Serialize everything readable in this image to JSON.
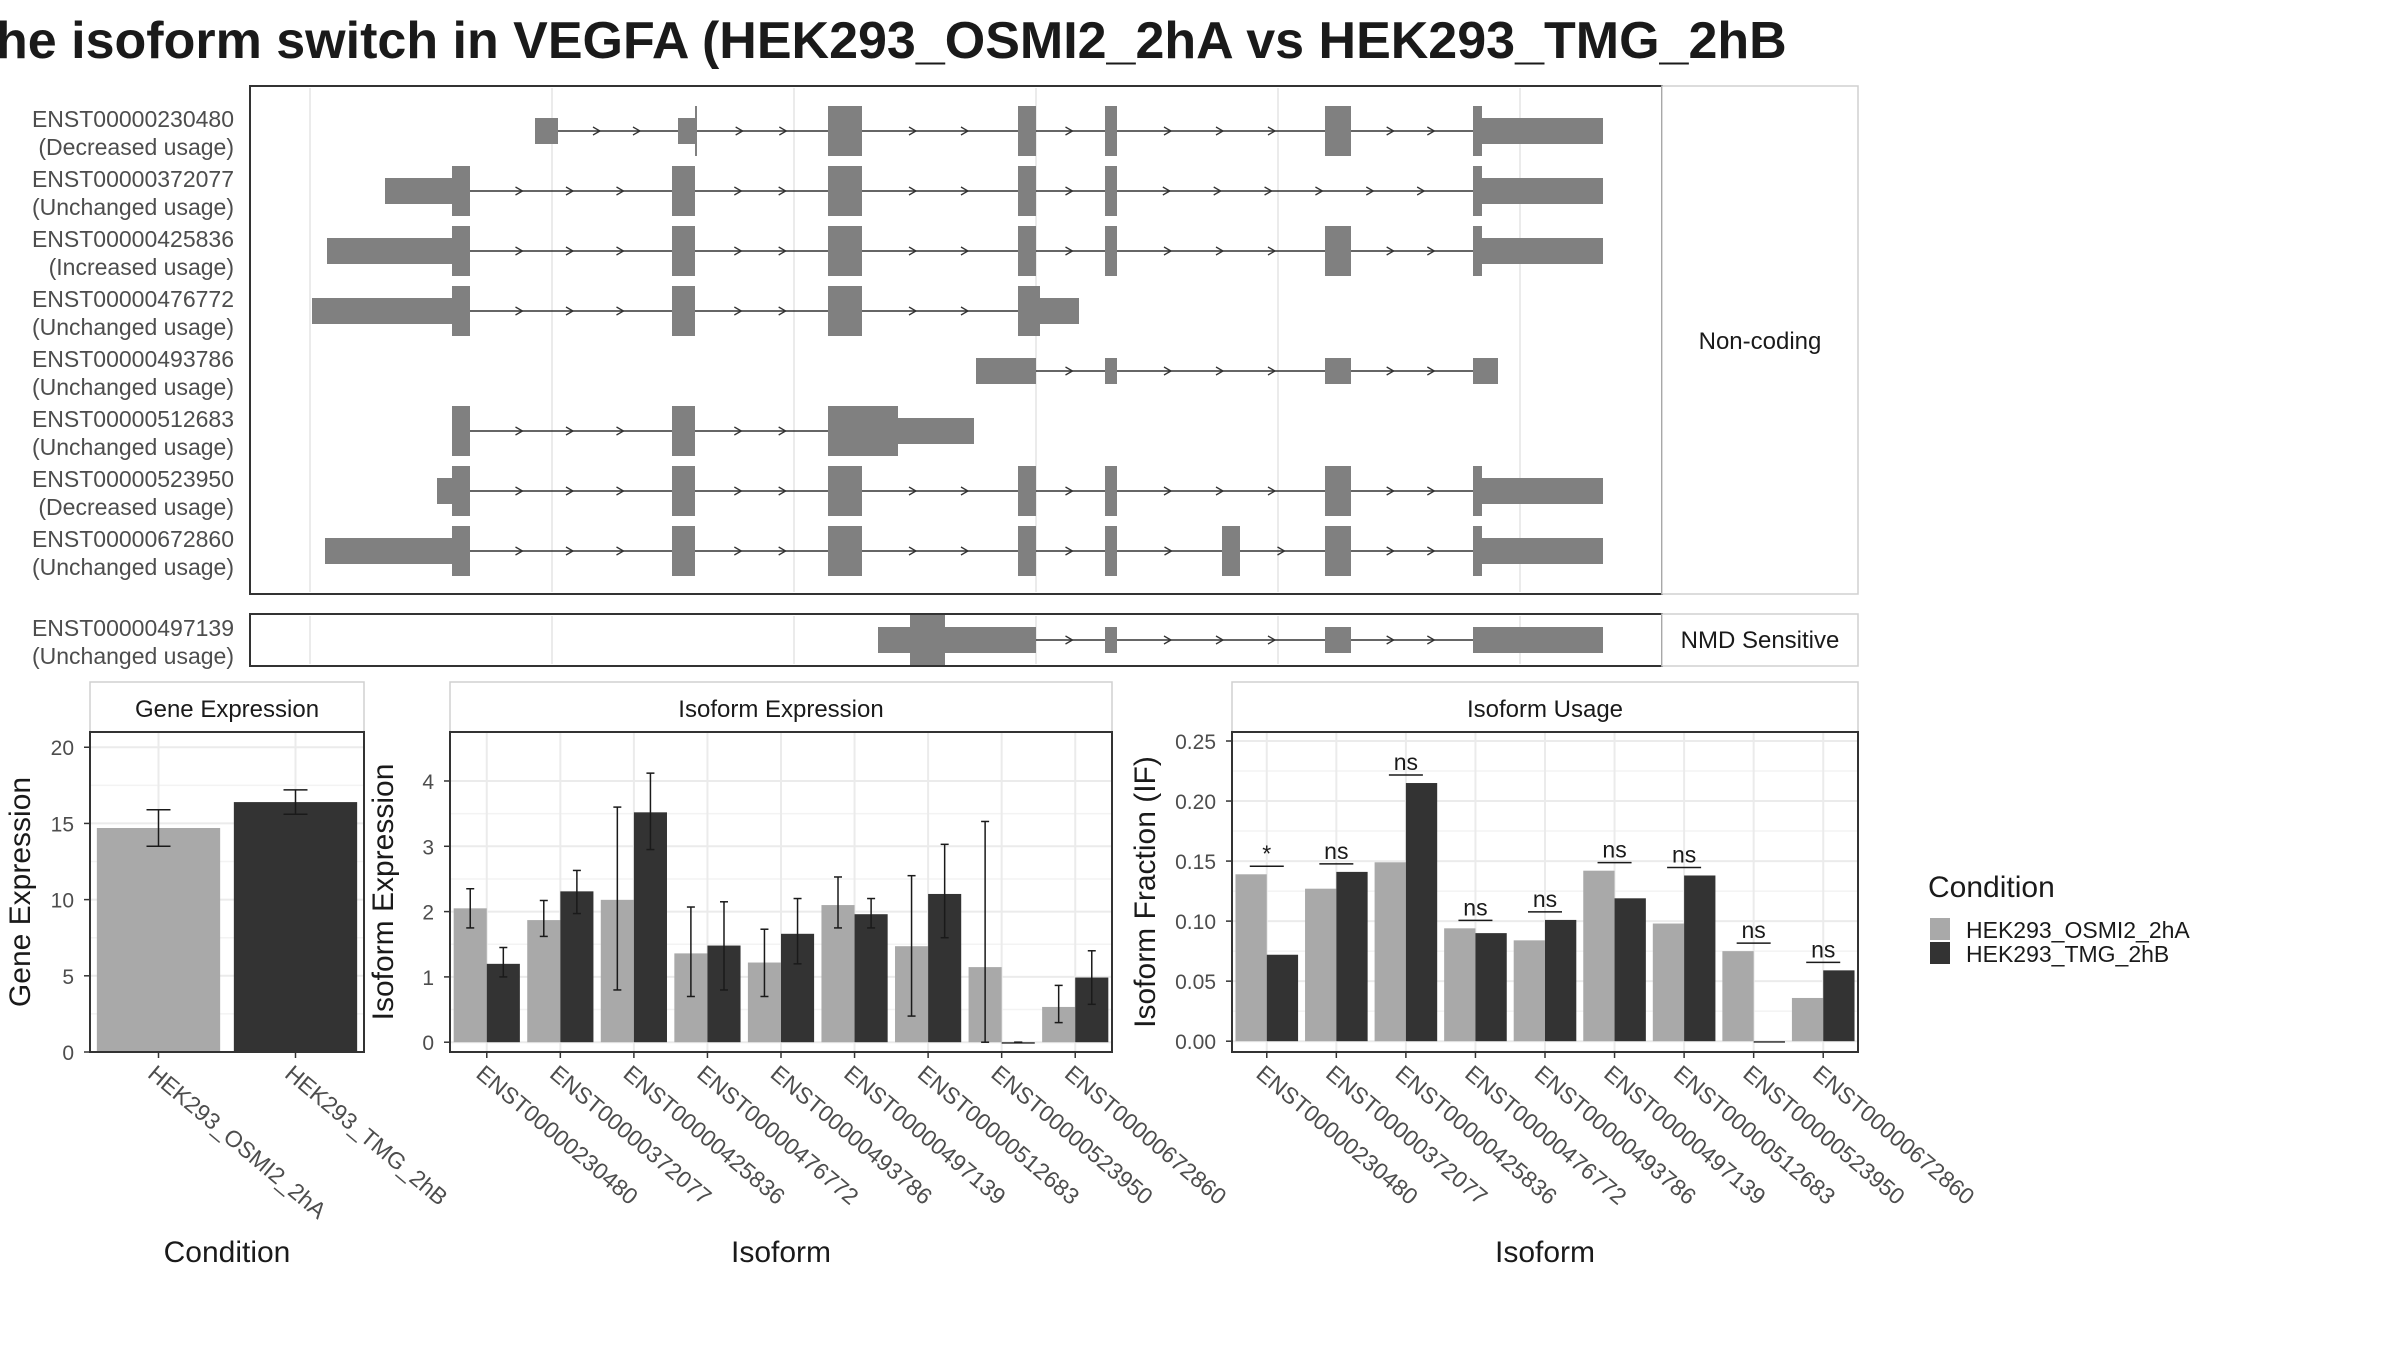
{
  "title": "he isoform switch in VEGFA (HEK293_OSMI2_2hA vs HEK293_TMG_2hB",
  "colors": {
    "cond1": "#a9a9a9",
    "cond2": "#333333",
    "exon": "#808080",
    "strip_bg": "#ffffff",
    "frame": "#333333",
    "grid": "#ebebeb"
  },
  "structure": {
    "facets": [
      "Non-coding",
      "NMD Sensitive"
    ],
    "transcripts": [
      {
        "id": "ENST00000230480",
        "usage": "(Decreased usage)",
        "facet": 0
      },
      {
        "id": "ENST00000372077",
        "usage": "(Unchanged usage)",
        "facet": 0
      },
      {
        "id": "ENST00000425836",
        "usage": "(Increased usage)",
        "facet": 0
      },
      {
        "id": "ENST00000476772",
        "usage": "(Unchanged usage)",
        "facet": 0
      },
      {
        "id": "ENST00000493786",
        "usage": "(Unchanged usage)",
        "facet": 0
      },
      {
        "id": "ENST00000512683",
        "usage": "(Unchanged usage)",
        "facet": 0
      },
      {
        "id": "ENST00000523950",
        "usage": "(Decreased usage)",
        "facet": 0
      },
      {
        "id": "ENST00000672860",
        "usage": "(Unchanged usage)",
        "facet": 0
      },
      {
        "id": "ENST00000497139",
        "usage": "(Unchanged usage)",
        "facet": 1
      }
    ]
  },
  "chart_data": [
    {
      "type": "bar",
      "panel": "Gene Expression",
      "xlabel": "Condition",
      "ylabel": "Gene Expression",
      "ylim": [
        0,
        21
      ],
      "yticks": [
        0,
        5,
        10,
        15,
        20
      ],
      "categories": [
        "HEK293_OSMI2_2hA",
        "HEK293_TMG_2hB"
      ],
      "values": [
        14.7,
        16.4
      ],
      "errors": [
        [
          13.5,
          15.9
        ],
        [
          15.6,
          17.2
        ]
      ]
    },
    {
      "type": "bar",
      "panel": "Isoform Expression",
      "xlabel": "Isoform",
      "ylabel": "Isoform Expression",
      "ylim": [
        -0.15,
        4.75
      ],
      "yticks": [
        0,
        1,
        2,
        3,
        4
      ],
      "categories": [
        "ENST00000230480",
        "ENST00000372077",
        "ENST00000425836",
        "ENST00000476772",
        "ENST00000493786",
        "ENST00000497139",
        "ENST00000512683",
        "ENST00000523950",
        "ENST00000672860"
      ],
      "series": [
        {
          "name": "HEK293_OSMI2_2hA",
          "values": [
            2.05,
            1.87,
            2.18,
            1.36,
            1.22,
            2.1,
            1.47,
            1.15,
            0.54
          ],
          "errors": [
            [
              1.75,
              2.35
            ],
            [
              1.62,
              2.17
            ],
            [
              0.8,
              3.6
            ],
            [
              0.7,
              2.07
            ],
            [
              0.7,
              1.73
            ],
            [
              1.75,
              2.53
            ],
            [
              0.4,
              2.55
            ],
            [
              0.0,
              3.38
            ],
            [
              0.3,
              0.87
            ]
          ]
        },
        {
          "name": "HEK293_TMG_2hB",
          "values": [
            1.2,
            2.31,
            3.52,
            1.48,
            1.66,
            1.96,
            2.27,
            0.0,
            0.99
          ],
          "errors": [
            [
              1.0,
              1.45
            ],
            [
              1.97,
              2.63
            ],
            [
              2.95,
              4.12
            ],
            [
              0.8,
              2.15
            ],
            [
              1.2,
              2.2
            ],
            [
              1.75,
              2.2
            ],
            [
              1.6,
              3.03
            ],
            [
              0.0,
              0.0
            ],
            [
              0.58,
              1.4
            ]
          ]
        }
      ]
    },
    {
      "type": "bar",
      "panel": "Isoform Usage",
      "xlabel": "Isoform",
      "ylabel": "Isoform Fraction (IF)",
      "ylim": [
        -0.009,
        0.2575
      ],
      "yticks": [
        0.0,
        0.05,
        0.1,
        0.15,
        0.2,
        0.25
      ],
      "ytick_labels": [
        "0.00",
        "0.05",
        "0.10",
        "0.15",
        "0.20",
        "0.25"
      ],
      "categories": [
        "ENST00000230480",
        "ENST00000372077",
        "ENST00000425836",
        "ENST00000476772",
        "ENST00000493786",
        "ENST00000497139",
        "ENST00000512683",
        "ENST00000523950",
        "ENST00000672860"
      ],
      "series": [
        {
          "name": "HEK293_OSMI2_2hA",
          "values": [
            0.139,
            0.127,
            0.149,
            0.094,
            0.084,
            0.142,
            0.098,
            0.075,
            0.036
          ]
        },
        {
          "name": "HEK293_TMG_2hB",
          "values": [
            0.072,
            0.141,
            0.215,
            0.09,
            0.101,
            0.119,
            0.138,
            0.0,
            0.059
          ]
        }
      ],
      "significance": [
        "*",
        "ns",
        "ns",
        "ns",
        "ns",
        "ns",
        "ns",
        "ns",
        "ns"
      ]
    }
  ],
  "legend": {
    "title": "Condition",
    "items": [
      "HEK293_OSMI2_2hA",
      "HEK293_TMG_2hB"
    ]
  }
}
